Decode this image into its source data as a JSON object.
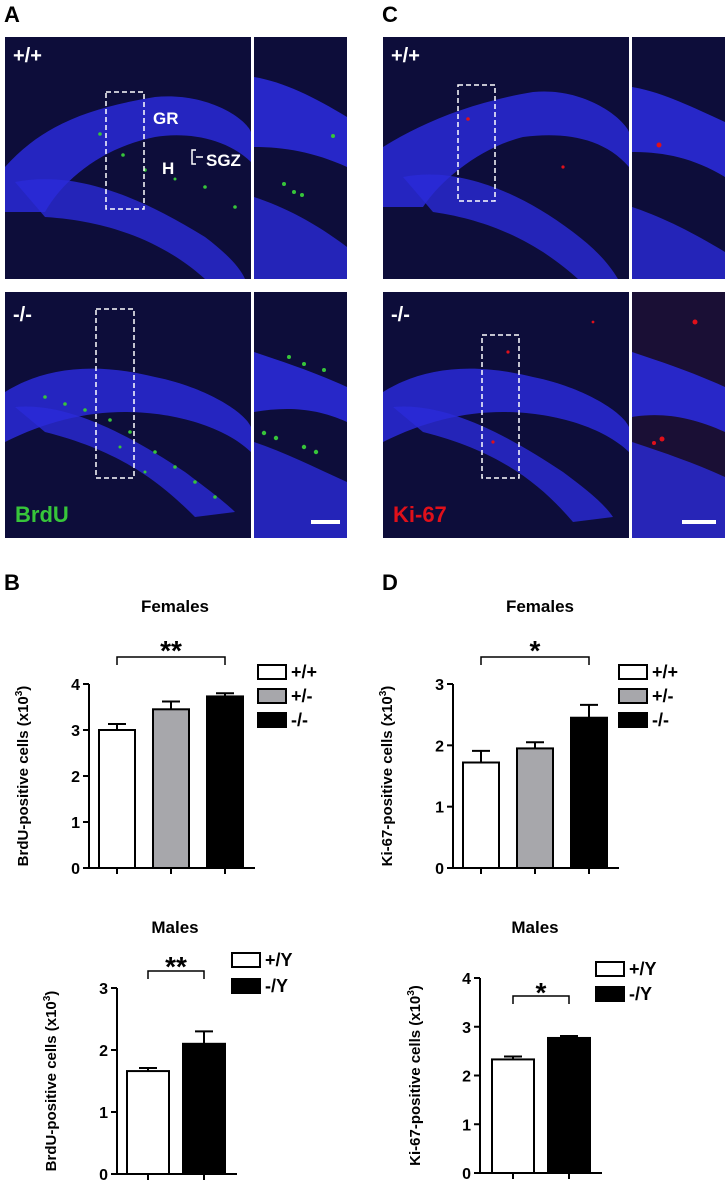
{
  "panels": {
    "A": {
      "letter": "A",
      "top_label": "+/+",
      "bottom_label": "-/-",
      "stain": "BrdU",
      "stain_color": "#37c53a",
      "region_labels": {
        "gr": "GR",
        "h": "H",
        "sgz": "SGZ"
      }
    },
    "B": {
      "letter": "B"
    },
    "C": {
      "letter": "C",
      "top_label": "+/+",
      "bottom_label": "-/-",
      "stain": "Ki-67",
      "stain_color": "#e0101a"
    },
    "D": {
      "letter": "D"
    }
  },
  "colors": {
    "tissue_blue": "#2a2ad8",
    "background_dark": "#0d0d3a",
    "wt_bar": "#ffffff",
    "het_bar": "#a7a7ab",
    "ko_bar": "#000000"
  },
  "chart_data": [
    {
      "id": "B-females",
      "type": "bar",
      "title": "Females",
      "ylabel": "BrdU-positive cells (x10",
      "ylabel_sup": "3",
      "ylabel_end": ")",
      "categories": [
        "+/+",
        "+/-",
        "-/-"
      ],
      "values": [
        3.0,
        3.45,
        3.73
      ],
      "errors": [
        0.13,
        0.17,
        0.07
      ],
      "colors": [
        "#ffffff",
        "#a7a7ab",
        "#000000"
      ],
      "ylim": [
        0,
        4
      ],
      "yticks": [
        0,
        1,
        2,
        3,
        4
      ],
      "legend": [
        "+/+",
        "+/-",
        "-/-"
      ],
      "legend_position": "top-right",
      "significance": "**",
      "sig_span": [
        0,
        2
      ]
    },
    {
      "id": "B-males",
      "type": "bar",
      "title": "Males",
      "ylabel": "BrdU-positive cells (x10",
      "ylabel_sup": "3",
      "ylabel_end": ")",
      "categories": [
        "+/Y",
        "-/Y"
      ],
      "values": [
        1.66,
        2.1
      ],
      "errors": [
        0.05,
        0.2
      ],
      "colors": [
        "#ffffff",
        "#000000"
      ],
      "ylim": [
        0,
        3
      ],
      "yticks": [
        0,
        1,
        2,
        3
      ],
      "legend": [
        "+/Y",
        "-/Y"
      ],
      "legend_position": "top-right",
      "significance": "**",
      "sig_span": [
        0,
        1
      ]
    },
    {
      "id": "D-females",
      "type": "bar",
      "title": "Females",
      "ylabel": "Ki-67-positive cells (x10",
      "ylabel_sup": "3",
      "ylabel_end": ")",
      "categories": [
        "+/+",
        "+/-",
        "-/-"
      ],
      "values": [
        1.72,
        1.95,
        2.45
      ],
      "errors": [
        0.19,
        0.1,
        0.21
      ],
      "colors": [
        "#ffffff",
        "#a7a7ab",
        "#000000"
      ],
      "ylim": [
        0,
        3
      ],
      "yticks": [
        0,
        1,
        2,
        3
      ],
      "legend": [
        "+/+",
        "+/-",
        "-/-"
      ],
      "legend_position": "top-right",
      "significance": "*",
      "sig_span": [
        0,
        2
      ]
    },
    {
      "id": "D-males",
      "type": "bar",
      "title": "Males",
      "ylabel": "Ki-67-positive cells (x10",
      "ylabel_sup": "3",
      "ylabel_end": ")",
      "categories": [
        "+/Y",
        "-/Y"
      ],
      "values": [
        2.33,
        2.77
      ],
      "errors": [
        0.06,
        0.04
      ],
      "colors": [
        "#ffffff",
        "#000000"
      ],
      "ylim": [
        0,
        4
      ],
      "yticks": [
        0,
        1,
        2,
        3,
        4
      ],
      "legend": [
        "+/Y",
        "-/Y"
      ],
      "legend_position": "top-right",
      "significance": "*",
      "sig_span": [
        0,
        1
      ]
    }
  ]
}
